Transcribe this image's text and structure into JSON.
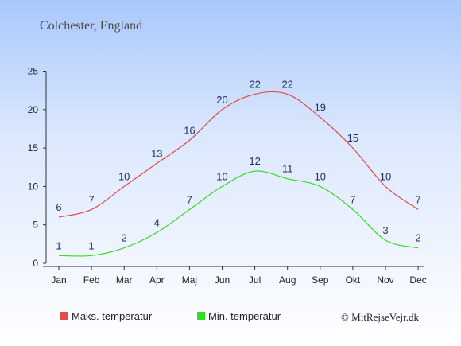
{
  "chart_data": {
    "type": "line",
    "title": "Colchester, England",
    "categories": [
      "Jan",
      "Feb",
      "Mar",
      "Apr",
      "Maj",
      "Jun",
      "Jul",
      "Aug",
      "Sep",
      "Okt",
      "Nov",
      "Dec"
    ],
    "ylim": [
      0,
      25
    ],
    "yticks": [
      0,
      5,
      10,
      15,
      20,
      25
    ],
    "grid": false,
    "legend_position": "bottom",
    "series": [
      {
        "name": "Maks. temperatur",
        "color": "#e8494a",
        "values": [
          6,
          7,
          10,
          13,
          16,
          20,
          22,
          22,
          19,
          15,
          10,
          7
        ]
      },
      {
        "name": "Min. temperatur",
        "color": "#33dd22",
        "values": [
          1,
          1,
          2,
          4,
          7,
          10,
          12,
          11,
          10,
          7,
          3,
          2
        ]
      }
    ],
    "copyright": "© MitRejseVejr.dk"
  }
}
